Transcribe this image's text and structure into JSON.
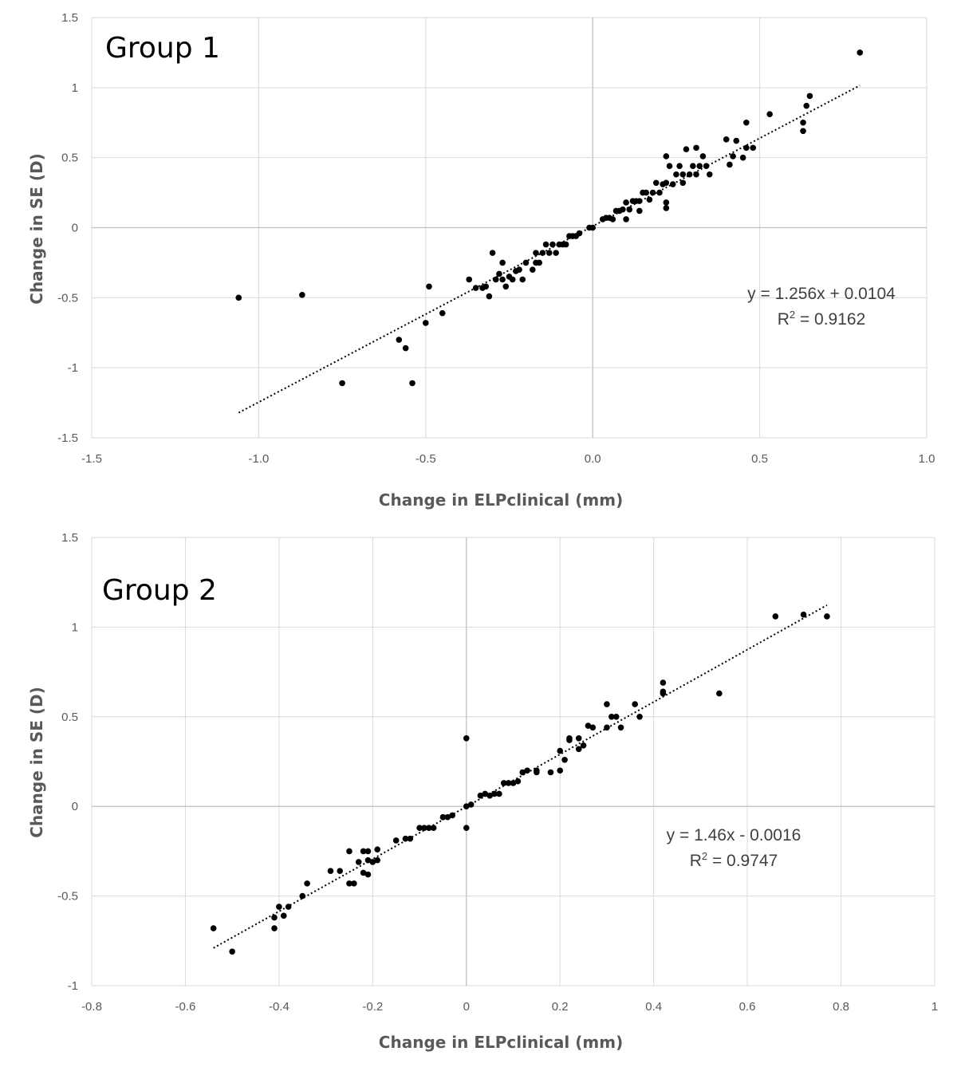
{
  "chart_data": [
    {
      "type": "scatter",
      "title": "Group 1",
      "xlabel": "Change in ELPclinical (mm)",
      "ylabel": "Change in SE (D)",
      "xlim": [
        -1.5,
        1.0
      ],
      "ylim": [
        -1.5,
        1.5
      ],
      "x_ticks": [
        "-1.5",
        "-1.0",
        "-0.5",
        "0.0",
        "0.5",
        "1.0"
      ],
      "y_ticks": [
        "1.5",
        "1",
        "0.5",
        "0",
        "-0.5",
        "-1",
        "-1.5"
      ],
      "grid": true,
      "trendline": {
        "slope": 1.256,
        "intercept": 0.0104,
        "x_range": [
          -1.06,
          0.8
        ],
        "style": "dotted"
      },
      "equation": "y = 1.256x + 0.0104",
      "r2_prefix": "R",
      "r2_sup": "2",
      "r2_value": " = 0.9162",
      "points": [
        [
          -1.06,
          -0.5
        ],
        [
          -0.87,
          -0.48
        ],
        [
          -0.75,
          -1.11
        ],
        [
          -0.58,
          -0.8
        ],
        [
          -0.56,
          -0.86
        ],
        [
          -0.54,
          -1.11
        ],
        [
          -0.5,
          -0.68
        ],
        [
          -0.49,
          -0.42
        ],
        [
          -0.45,
          -0.61
        ],
        [
          -0.37,
          -0.37
        ],
        [
          -0.35,
          -0.43
        ],
        [
          -0.33,
          -0.43
        ],
        [
          -0.32,
          -0.42
        ],
        [
          -0.31,
          -0.49
        ],
        [
          -0.3,
          -0.18
        ],
        [
          -0.29,
          -0.37
        ],
        [
          -0.28,
          -0.33
        ],
        [
          -0.27,
          -0.25
        ],
        [
          -0.27,
          -0.37
        ],
        [
          -0.26,
          -0.42
        ],
        [
          -0.25,
          -0.35
        ],
        [
          -0.24,
          -0.37
        ],
        [
          -0.23,
          -0.31
        ],
        [
          -0.22,
          -0.3
        ],
        [
          -0.21,
          -0.37
        ],
        [
          -0.2,
          -0.25
        ],
        [
          -0.18,
          -0.3
        ],
        [
          -0.17,
          -0.25
        ],
        [
          -0.17,
          -0.18
        ],
        [
          -0.16,
          -0.25
        ],
        [
          -0.15,
          -0.18
        ],
        [
          -0.14,
          -0.12
        ],
        [
          -0.13,
          -0.18
        ],
        [
          -0.12,
          -0.12
        ],
        [
          -0.11,
          -0.18
        ],
        [
          -0.1,
          -0.12
        ],
        [
          -0.09,
          -0.12
        ],
        [
          -0.08,
          -0.12
        ],
        [
          -0.07,
          -0.06
        ],
        [
          -0.06,
          -0.06
        ],
        [
          -0.05,
          -0.06
        ],
        [
          -0.04,
          -0.04
        ],
        [
          -0.01,
          0.0
        ],
        [
          0.0,
          0.0
        ],
        [
          0.03,
          0.06
        ],
        [
          0.04,
          0.07
        ],
        [
          0.05,
          0.07
        ],
        [
          0.06,
          0.06
        ],
        [
          0.07,
          0.12
        ],
        [
          0.08,
          0.12
        ],
        [
          0.09,
          0.13
        ],
        [
          0.1,
          0.18
        ],
        [
          0.1,
          0.06
        ],
        [
          0.11,
          0.13
        ],
        [
          0.12,
          0.19
        ],
        [
          0.13,
          0.19
        ],
        [
          0.14,
          0.12
        ],
        [
          0.14,
          0.19
        ],
        [
          0.15,
          0.25
        ],
        [
          0.16,
          0.25
        ],
        [
          0.17,
          0.2
        ],
        [
          0.18,
          0.25
        ],
        [
          0.19,
          0.32
        ],
        [
          0.2,
          0.25
        ],
        [
          0.21,
          0.31
        ],
        [
          0.22,
          0.32
        ],
        [
          0.22,
          0.14
        ],
        [
          0.22,
          0.18
        ],
        [
          0.22,
          0.51
        ],
        [
          0.23,
          0.44
        ],
        [
          0.24,
          0.31
        ],
        [
          0.25,
          0.38
        ],
        [
          0.26,
          0.44
        ],
        [
          0.27,
          0.32
        ],
        [
          0.27,
          0.38
        ],
        [
          0.28,
          0.56
        ],
        [
          0.29,
          0.38
        ],
        [
          0.3,
          0.44
        ],
        [
          0.31,
          0.57
        ],
        [
          0.31,
          0.38
        ],
        [
          0.32,
          0.44
        ],
        [
          0.33,
          0.51
        ],
        [
          0.34,
          0.44
        ],
        [
          0.35,
          0.38
        ],
        [
          0.4,
          0.63
        ],
        [
          0.41,
          0.45
        ],
        [
          0.42,
          0.51
        ],
        [
          0.43,
          0.62
        ],
        [
          0.45,
          0.5
        ],
        [
          0.46,
          0.75
        ],
        [
          0.46,
          0.57
        ],
        [
          0.48,
          0.57
        ],
        [
          0.53,
          0.81
        ],
        [
          0.63,
          0.69
        ],
        [
          0.63,
          0.75
        ],
        [
          0.64,
          0.87
        ],
        [
          0.65,
          0.94
        ],
        [
          0.8,
          1.25
        ]
      ]
    },
    {
      "type": "scatter",
      "title": "Group 2",
      "xlabel": "Change in ELPclinical (mm)",
      "ylabel": "Change in SE (D)",
      "xlim": [
        -0.8,
        1.0
      ],
      "ylim": [
        -1.0,
        1.5
      ],
      "x_ticks": [
        "-0.8",
        "-0.6",
        "-0.4",
        "-0.2",
        "0",
        "0.2",
        "0.4",
        "0.6",
        "0.8",
        "1"
      ],
      "y_ticks": [
        "1.5",
        "1",
        "0.5",
        "0",
        "-0.5",
        "-1"
      ],
      "grid": true,
      "trendline": {
        "slope": 1.46,
        "intercept": -0.0016,
        "x_range": [
          -0.54,
          0.77
        ],
        "style": "dotted"
      },
      "equation": "y = 1.46x - 0.0016",
      "r2_prefix": "R",
      "r2_sup": "2",
      "r2_value": " = 0.9747",
      "points": [
        [
          -0.54,
          -0.68
        ],
        [
          -0.5,
          -0.81
        ],
        [
          -0.41,
          -0.68
        ],
        [
          -0.41,
          -0.62
        ],
        [
          -0.4,
          -0.56
        ],
        [
          -0.39,
          -0.61
        ],
        [
          -0.38,
          -0.56
        ],
        [
          -0.35,
          -0.5
        ],
        [
          -0.34,
          -0.43
        ],
        [
          -0.29,
          -0.36
        ],
        [
          -0.27,
          -0.36
        ],
        [
          -0.25,
          -0.25
        ],
        [
          -0.25,
          -0.43
        ],
        [
          -0.24,
          -0.43
        ],
        [
          -0.23,
          -0.31
        ],
        [
          -0.22,
          -0.25
        ],
        [
          -0.22,
          -0.37
        ],
        [
          -0.21,
          -0.38
        ],
        [
          -0.21,
          -0.3
        ],
        [
          -0.21,
          -0.25
        ],
        [
          -0.2,
          -0.31
        ],
        [
          -0.19,
          -0.3
        ],
        [
          -0.19,
          -0.24
        ],
        [
          -0.15,
          -0.19
        ],
        [
          -0.13,
          -0.18
        ],
        [
          -0.12,
          -0.18
        ],
        [
          -0.1,
          -0.12
        ],
        [
          -0.09,
          -0.12
        ],
        [
          -0.08,
          -0.12
        ],
        [
          -0.07,
          -0.12
        ],
        [
          -0.05,
          -0.06
        ],
        [
          -0.04,
          -0.06
        ],
        [
          -0.03,
          -0.05
        ],
        [
          0.0,
          0.38
        ],
        [
          0.0,
          0.0
        ],
        [
          0.0,
          -0.12
        ],
        [
          0.01,
          0.01
        ],
        [
          0.03,
          0.06
        ],
        [
          0.04,
          0.07
        ],
        [
          0.05,
          0.06
        ],
        [
          0.06,
          0.07
        ],
        [
          0.07,
          0.07
        ],
        [
          0.08,
          0.13
        ],
        [
          0.09,
          0.13
        ],
        [
          0.1,
          0.13
        ],
        [
          0.11,
          0.14
        ],
        [
          0.12,
          0.19
        ],
        [
          0.13,
          0.2
        ],
        [
          0.15,
          0.19
        ],
        [
          0.15,
          0.2
        ],
        [
          0.18,
          0.19
        ],
        [
          0.2,
          0.31
        ],
        [
          0.2,
          0.2
        ],
        [
          0.21,
          0.26
        ],
        [
          0.22,
          0.37
        ],
        [
          0.22,
          0.38
        ],
        [
          0.24,
          0.32
        ],
        [
          0.24,
          0.38
        ],
        [
          0.25,
          0.34
        ],
        [
          0.26,
          0.45
        ],
        [
          0.27,
          0.44
        ],
        [
          0.3,
          0.57
        ],
        [
          0.3,
          0.44
        ],
        [
          0.31,
          0.5
        ],
        [
          0.32,
          0.5
        ],
        [
          0.33,
          0.44
        ],
        [
          0.36,
          0.57
        ],
        [
          0.37,
          0.5
        ],
        [
          0.42,
          0.63
        ],
        [
          0.42,
          0.64
        ],
        [
          0.42,
          0.69
        ],
        [
          0.54,
          0.63
        ],
        [
          0.66,
          1.06
        ],
        [
          0.72,
          1.07
        ],
        [
          0.77,
          1.06
        ]
      ]
    }
  ]
}
